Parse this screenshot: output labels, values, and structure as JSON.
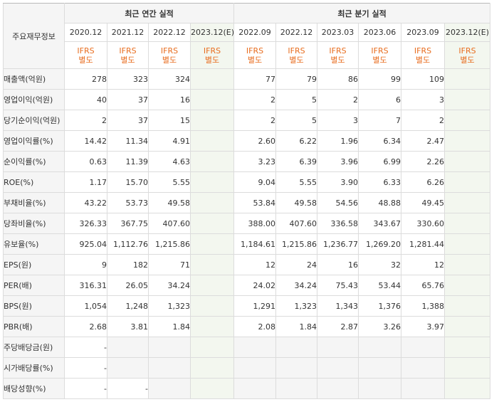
{
  "corner_label": "주요재무정보",
  "annual_group": "최근 연간 실적",
  "quarterly_group": "최근 분기 실적",
  "periods": [
    {
      "label": "2020.12",
      "basis": [
        "IFRS",
        "별도"
      ],
      "est": false
    },
    {
      "label": "2021.12",
      "basis": [
        "IFRS",
        "별도"
      ],
      "est": false
    },
    {
      "label": "2022.12",
      "basis": [
        "IFRS",
        "별도"
      ],
      "est": false
    },
    {
      "label": "2023.12(E)",
      "basis": [
        "IFRS",
        "별도"
      ],
      "est": true
    },
    {
      "label": "2022.09",
      "basis": [
        "IFRS",
        "별도"
      ],
      "est": false
    },
    {
      "label": "2022.12",
      "basis": [
        "IFRS",
        "별도"
      ],
      "est": false
    },
    {
      "label": "2023.03",
      "basis": [
        "IFRS",
        "별도"
      ],
      "est": false
    },
    {
      "label": "2023.06",
      "basis": [
        "IFRS",
        "별도"
      ],
      "est": false
    },
    {
      "label": "2023.09",
      "basis": [
        "IFRS",
        "별도"
      ],
      "est": false
    },
    {
      "label": "2023.12(E)",
      "basis": [
        "IFRS",
        "별도"
      ],
      "est": true
    }
  ],
  "rows": [
    {
      "label": "매출액(억원)",
      "values": [
        "278",
        "323",
        "324",
        "",
        "77",
        "79",
        "86",
        "99",
        "109",
        ""
      ]
    },
    {
      "label": "영업이익(억원)",
      "values": [
        "40",
        "37",
        "16",
        "",
        "2",
        "5",
        "2",
        "6",
        "3",
        ""
      ]
    },
    {
      "label": "당기순이익(억원)",
      "values": [
        "2",
        "37",
        "15",
        "",
        "2",
        "5",
        "3",
        "7",
        "2",
        ""
      ]
    },
    {
      "label": "영업이익률(%)",
      "values": [
        "14.42",
        "11.34",
        "4.91",
        "",
        "2.60",
        "6.22",
        "1.96",
        "6.34",
        "2.47",
        ""
      ]
    },
    {
      "label": "순이익률(%)",
      "values": [
        "0.63",
        "11.39",
        "4.63",
        "",
        "3.23",
        "6.39",
        "3.96",
        "6.99",
        "2.26",
        ""
      ]
    },
    {
      "label": "ROE(%)",
      "values": [
        "1.17",
        "15.70",
        "5.55",
        "",
        "9.04",
        "5.55",
        "3.90",
        "6.33",
        "6.26",
        ""
      ]
    },
    {
      "label": "부채비율(%)",
      "values": [
        "43.22",
        "53.73",
        "49.58",
        "",
        "53.84",
        "49.58",
        "54.56",
        "48.88",
        "49.45",
        ""
      ]
    },
    {
      "label": "당좌비율(%)",
      "values": [
        "326.33",
        "367.75",
        "407.60",
        "",
        "388.00",
        "407.60",
        "336.58",
        "343.67",
        "330.60",
        ""
      ]
    },
    {
      "label": "유보율(%)",
      "values": [
        "925.04",
        "1,112.76",
        "1,215.86",
        "",
        "1,184.61",
        "1,215.86",
        "1,236.77",
        "1,269.20",
        "1,281.44",
        ""
      ]
    },
    {
      "label": "EPS(원)",
      "values": [
        "9",
        "182",
        "71",
        "",
        "12",
        "24",
        "16",
        "32",
        "12",
        ""
      ]
    },
    {
      "label": "PER(배)",
      "values": [
        "316.31",
        "26.05",
        "34.24",
        "",
        "24.02",
        "34.24",
        "75.43",
        "53.44",
        "65.76",
        ""
      ]
    },
    {
      "label": "BPS(원)",
      "values": [
        "1,054",
        "1,248",
        "1,323",
        "",
        "1,291",
        "1,323",
        "1,343",
        "1,376",
        "1,388",
        ""
      ]
    },
    {
      "label": "PBR(배)",
      "values": [
        "2.68",
        "3.81",
        "1.84",
        "",
        "2.08",
        "1.84",
        "2.87",
        "3.26",
        "3.97",
        ""
      ]
    },
    {
      "label": "주당배당금(원)",
      "values": [
        "-",
        "",
        "",
        "",
        "",
        "",
        "",
        "",
        "",
        ""
      ]
    },
    {
      "label": "시가배당률(%)",
      "values": [
        "-",
        "",
        "",
        "",
        "",
        "",
        "",
        "",
        "",
        ""
      ]
    },
    {
      "label": "배당성향(%)",
      "values": [
        "-",
        "-",
        "",
        "",
        "",
        "",
        "",
        "",
        "",
        ""
      ]
    }
  ]
}
